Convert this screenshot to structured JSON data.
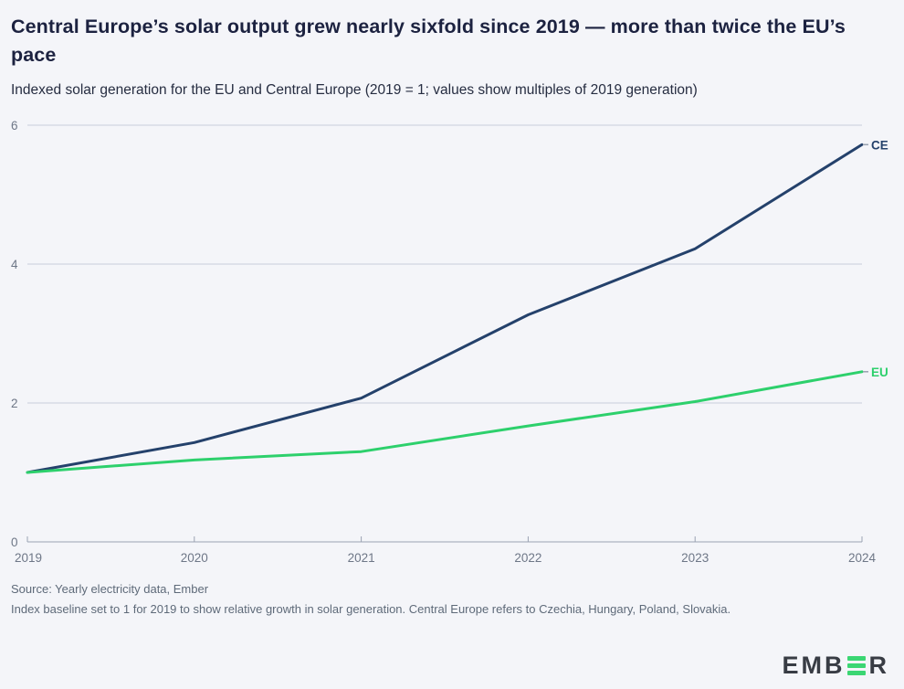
{
  "header": {
    "title": "Central Europe’s solar output grew nearly sixfold since 2019 — more than twice the EU’s pace",
    "subtitle": "Indexed solar generation for the EU and Central Europe (2019 = 1; values show multiples of 2019 generation)"
  },
  "chart_data": {
    "type": "line",
    "title": "Central Europe’s solar output grew nearly sixfold since 2019 — more than twice the EU’s pace",
    "subtitle": "Indexed solar generation for the EU and Central Europe (2019 = 1; values show multiples of 2019 generation)",
    "x": [
      2019,
      2020,
      2021,
      2022,
      2023,
      2024
    ],
    "series": [
      {
        "name": "CE",
        "color": "#24416b",
        "values": [
          1.0,
          1.43,
          2.07,
          3.27,
          4.22,
          5.72
        ]
      },
      {
        "name": "EU",
        "color": "#2dd06c",
        "values": [
          1.0,
          1.18,
          1.3,
          1.67,
          2.02,
          2.45
        ]
      }
    ],
    "xlabel": "",
    "ylabel": "",
    "ylim": [
      0,
      6
    ],
    "yticks": [
      0,
      2,
      4,
      6
    ],
    "grid": "horizontal",
    "legend_position": "line-end-labels"
  },
  "footer": {
    "source": "Source: Yearly electricity data, Ember",
    "note": "Index baseline set to 1 for 2019 to show relative growth in solar generation. Central Europe refers to Czechia, Hungary, Poland, Slovakia."
  },
  "logo": {
    "prefix": "EMB",
    "suffix": "R",
    "name": "EMBER"
  },
  "colors": {
    "background": "#f4f5f9",
    "title": "#1c2240",
    "subtitle": "#262d41",
    "gridline": "#c8cdda",
    "axis": "#9aa2b2",
    "tick_label": "#6e7787",
    "ce_line": "#24416b",
    "eu_line": "#2dd06c",
    "footer_text": "#5e6a79",
    "logo_dark": "#383c44",
    "logo_green": "#3bd673"
  }
}
